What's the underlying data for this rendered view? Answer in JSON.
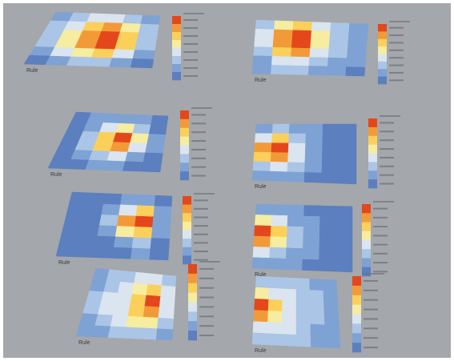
{
  "palette": [
    "#5b7fbf",
    "#7fa2d4",
    "#abc5e6",
    "#dbe5ef",
    "#f6eda0",
    "#fbd05a",
    "#f39a38",
    "#e4471c"
  ],
  "panels": [
    {
      "label": "Rule",
      "cells": [
        [
          1,
          2,
          3,
          3,
          2,
          1
        ],
        [
          2,
          3,
          5,
          6,
          4,
          2
        ],
        [
          2,
          4,
          6,
          7,
          5,
          2
        ],
        [
          2,
          4,
          6,
          7,
          5,
          2
        ],
        [
          1,
          3,
          4,
          5,
          3,
          1
        ],
        [
          0,
          1,
          2,
          2,
          1,
          0
        ]
      ]
    },
    {
      "label": "Rule",
      "cells": [
        [
          2,
          4,
          5,
          3,
          2,
          1
        ],
        [
          3,
          6,
          7,
          4,
          2,
          1
        ],
        [
          3,
          6,
          7,
          4,
          2,
          1
        ],
        [
          2,
          5,
          6,
          3,
          2,
          1
        ],
        [
          1,
          3,
          3,
          2,
          1,
          1
        ],
        [
          1,
          2,
          2,
          1,
          1,
          0
        ]
      ]
    },
    {
      "label": "Rule",
      "cells": [
        [
          0,
          1,
          1,
          1,
          1,
          0
        ],
        [
          0,
          1,
          3,
          4,
          2,
          0
        ],
        [
          0,
          2,
          5,
          7,
          4,
          1
        ],
        [
          0,
          2,
          5,
          6,
          3,
          1
        ],
        [
          0,
          1,
          2,
          3,
          1,
          0
        ],
        [
          0,
          0,
          1,
          1,
          0,
          0
        ]
      ]
    },
    {
      "label": "Rule",
      "cells": [
        [
          1,
          2,
          1,
          1,
          0,
          0
        ],
        [
          3,
          5,
          2,
          1,
          0,
          0
        ],
        [
          6,
          7,
          3,
          1,
          0,
          0
        ],
        [
          5,
          6,
          3,
          1,
          0,
          0
        ],
        [
          2,
          3,
          2,
          1,
          0,
          0
        ],
        [
          1,
          1,
          1,
          0,
          0,
          0
        ]
      ]
    },
    {
      "label": "Rule",
      "cells": [
        [
          0,
          0,
          0,
          1,
          1,
          0
        ],
        [
          0,
          0,
          1,
          3,
          5,
          1
        ],
        [
          0,
          0,
          2,
          6,
          7,
          1
        ],
        [
          0,
          0,
          1,
          4,
          5,
          1
        ],
        [
          0,
          0,
          0,
          1,
          2,
          0
        ],
        [
          0,
          0,
          0,
          0,
          1,
          0
        ]
      ]
    },
    {
      "label": "Rule",
      "cells": [
        [
          1,
          1,
          1,
          0,
          0,
          0
        ],
        [
          4,
          3,
          1,
          1,
          0,
          0
        ],
        [
          7,
          5,
          2,
          1,
          0,
          0
        ],
        [
          6,
          4,
          2,
          1,
          0,
          0
        ],
        [
          3,
          2,
          1,
          1,
          0,
          0
        ],
        [
          1,
          1,
          1,
          0,
          0,
          0
        ]
      ]
    },
    {
      "label": "Rule",
      "cells": [
        [
          1,
          2,
          2,
          3,
          3,
          2
        ],
        [
          1,
          2,
          3,
          4,
          5,
          3
        ],
        [
          2,
          3,
          3,
          5,
          7,
          3
        ],
        [
          2,
          3,
          3,
          5,
          6,
          3
        ],
        [
          1,
          2,
          3,
          4,
          4,
          2
        ],
        [
          1,
          1,
          2,
          2,
          2,
          1
        ]
      ]
    },
    {
      "label": "Rule",
      "cells": [
        [
          2,
          2,
          2,
          2,
          1,
          1
        ],
        [
          4,
          3,
          3,
          2,
          2,
          1
        ],
        [
          7,
          5,
          3,
          2,
          2,
          1
        ],
        [
          6,
          4,
          3,
          2,
          2,
          1
        ],
        [
          3,
          3,
          3,
          2,
          1,
          1
        ],
        [
          2,
          2,
          2,
          2,
          1,
          1
        ]
      ]
    }
  ]
}
